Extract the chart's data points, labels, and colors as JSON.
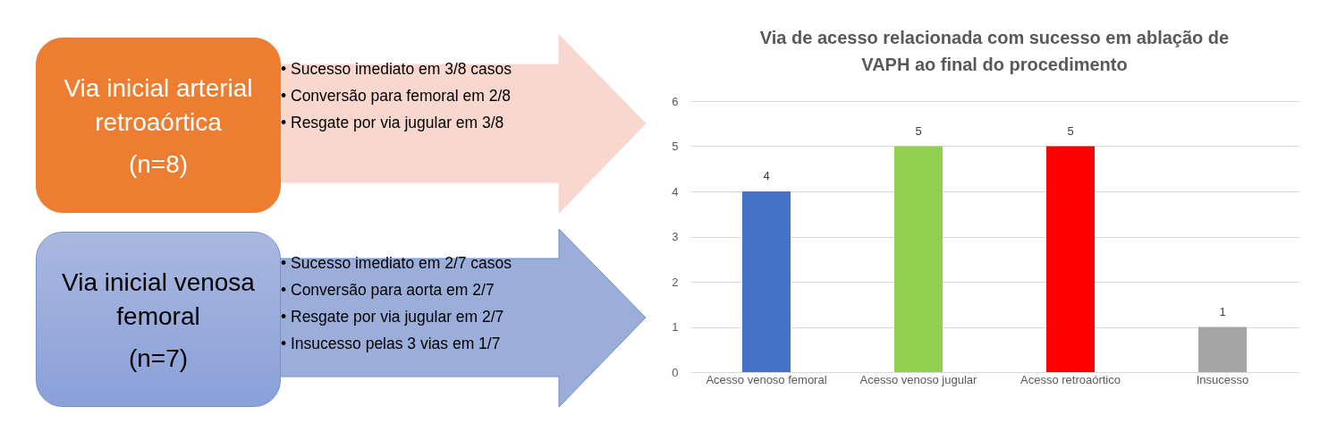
{
  "chart_data": [
    {
      "type": "other",
      "title": "Via inicial arterial retroaórtica",
      "subtitle": "(n=8)",
      "annotations": [
        "• Sucesso imediato em 3/8 casos",
        "• Conversão para femoral em 2/8",
        "• Resgate por via jugular em 3/8"
      ]
    },
    {
      "type": "other",
      "title": "Via inicial venosa femoral",
      "subtitle": "(n=7)",
      "annotations": [
        "• Sucesso imediato em 2/7 casos",
        "• Conversão para aorta em 2/7",
        "• Resgate por via jugular em 2/7",
        "• Insucesso pelas 3 vias em 1/7"
      ]
    },
    {
      "type": "bar",
      "title": "Via de acesso relacionada com sucesso em ablação de VAPH ao final do procedimento",
      "categories": [
        "Acesso venoso femoral",
        "Acesso venoso jugular",
        "Acesso retroaórtico",
        "Insucesso"
      ],
      "values": [
        4,
        5,
        5,
        1
      ],
      "colors": [
        "#4472c4",
        "#92d050",
        "#ff0000",
        "#a5a5a5"
      ],
      "ylim": [
        0,
        6
      ],
      "yticks": [
        0,
        1,
        2,
        3,
        4,
        5,
        6
      ],
      "grid": "y",
      "data_labels": true
    }
  ]
}
